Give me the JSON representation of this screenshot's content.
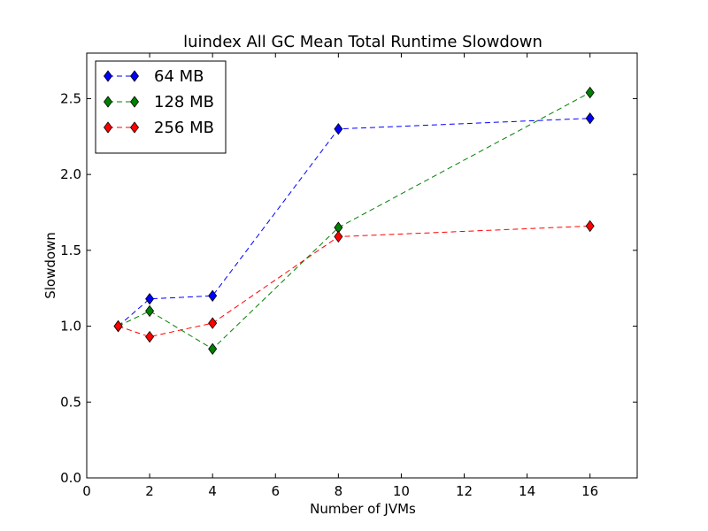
{
  "chart_data": {
    "type": "line",
    "title": "luindex All GC Mean Total Runtime Slowdown",
    "xlabel": "Number of JVMs",
    "ylabel": "Slowdown",
    "xlim": [
      0,
      17.5
    ],
    "ylim": [
      0.0,
      2.8
    ],
    "xticks": [
      0,
      2,
      4,
      6,
      8,
      10,
      12,
      14,
      16
    ],
    "xtick_labels": [
      "0",
      "2",
      "4",
      "6",
      "8",
      "10",
      "12",
      "14",
      "16"
    ],
    "yticks": [
      0.0,
      0.5,
      1.0,
      1.5,
      2.0,
      2.5
    ],
    "ytick_labels": [
      "0.0",
      "0.5",
      "1.0",
      "1.5",
      "2.0",
      "2.5"
    ],
    "grid": false,
    "legend_position": "top-left",
    "x": [
      1,
      2,
      4,
      8,
      16
    ],
    "series": [
      {
        "name": "64 MB",
        "color": "#0000ff",
        "values": [
          1.0,
          1.18,
          1.2,
          2.3,
          2.37
        ]
      },
      {
        "name": "128 MB",
        "color": "#008000",
        "values": [
          1.0,
          1.1,
          0.85,
          1.65,
          2.54
        ]
      },
      {
        "name": "256 MB",
        "color": "#ff0000",
        "values": [
          1.0,
          0.93,
          1.02,
          1.59,
          1.66
        ]
      }
    ]
  }
}
